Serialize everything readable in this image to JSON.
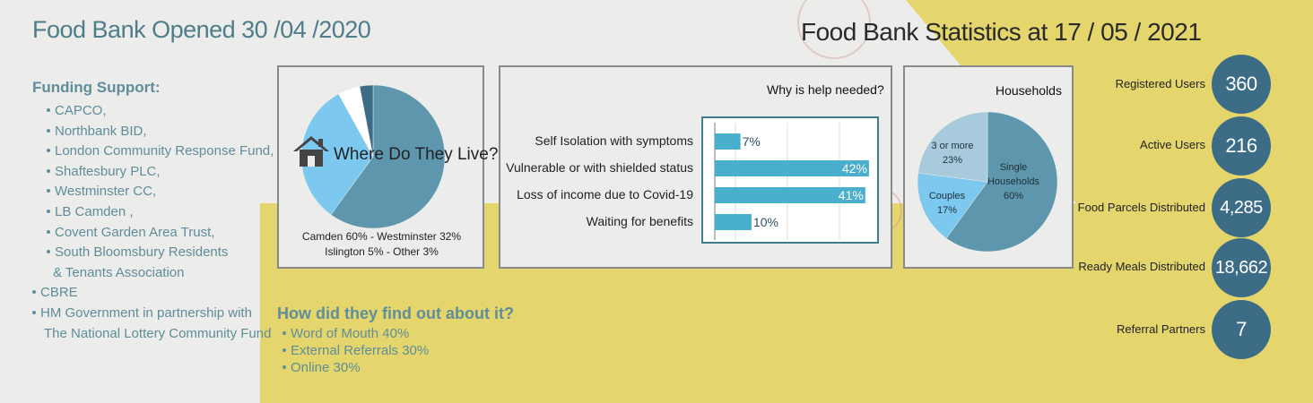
{
  "header": {
    "opened": "Food Bank Opened 30 /04 /2020",
    "stats_title": "Food Bank Statistics at 17 / 05 / 2021"
  },
  "funding": {
    "heading": "Funding Support:",
    "items": [
      "CAPCO,",
      "Northbank BID,",
      "London Community Response Fund,",
      "Shaftesbury PLC,",
      "Westminster CC,",
      "LB Camden ,",
      "Covent Garden Area Trust,",
      "South Bloomsbury Residents",
      "& Tenants Association",
      "CBRE",
      "HM Government in partnership with",
      "The National Lottery Community Fund"
    ]
  },
  "colors": {
    "yellow": "#e4d66c",
    "teal_text": "#5f8d99",
    "circle": "#3d6d86",
    "bar": "#4aaecd",
    "pie_dark": "#5e97ad",
    "pie_light": "#7cc8ee",
    "pie_pale": "#a7cbdc"
  },
  "where": {
    "title": "Where Do They Live?",
    "caption_line1": "Camden 60% - Westminster 32%",
    "caption_line2": "Islington 5% - Other 3%"
  },
  "why": {
    "title": "Why is help needed?"
  },
  "households": {
    "title": "Households"
  },
  "find": {
    "heading": "How did they find out about it?",
    "items": [
      "Word of Mouth 40%",
      "External Referrals 30%",
      "Online 30%"
    ]
  },
  "stats": [
    {
      "label": "Registered Users",
      "value": "360"
    },
    {
      "label": "Active Users",
      "value": "216"
    },
    {
      "label": "Food Parcels Distributed",
      "value": "4,285"
    },
    {
      "label": "Ready Meals Distributed",
      "value": "18,662"
    },
    {
      "label": "Referral Partners",
      "value": "7"
    }
  ],
  "chart_data": [
    {
      "type": "pie",
      "title": "Where Do They Live?",
      "categories": [
        "Camden",
        "Westminster",
        "Islington",
        "Other"
      ],
      "values": [
        60,
        32,
        5,
        3
      ],
      "colors": [
        "#5e97ad",
        "#7cc8ee",
        "#ffffff",
        "#3d6d86"
      ]
    },
    {
      "type": "bar",
      "orientation": "horizontal",
      "title": "Why is help needed?",
      "categories": [
        "Self Isolation with symptoms",
        "Vulnerable or with shielded status",
        "Loss of income due to Covid-19",
        "Waiting for benefits"
      ],
      "values": [
        7,
        42,
        41,
        10
      ],
      "value_labels": [
        "7%",
        "42%",
        "41%",
        "10%"
      ],
      "xlim": [
        0,
        43
      ],
      "grid": true
    },
    {
      "type": "pie",
      "title": "Households",
      "categories": [
        "Single Households",
        "Couples",
        "3 or more"
      ],
      "values": [
        60,
        17,
        23
      ],
      "labels": [
        [
          "Single",
          "Households",
          "60%"
        ],
        [
          "Couples",
          "17%"
        ],
        [
          "3 or more",
          "23%"
        ]
      ],
      "colors": [
        "#5e97ad",
        "#7cc8ee",
        "#a7cbdc"
      ]
    }
  ]
}
